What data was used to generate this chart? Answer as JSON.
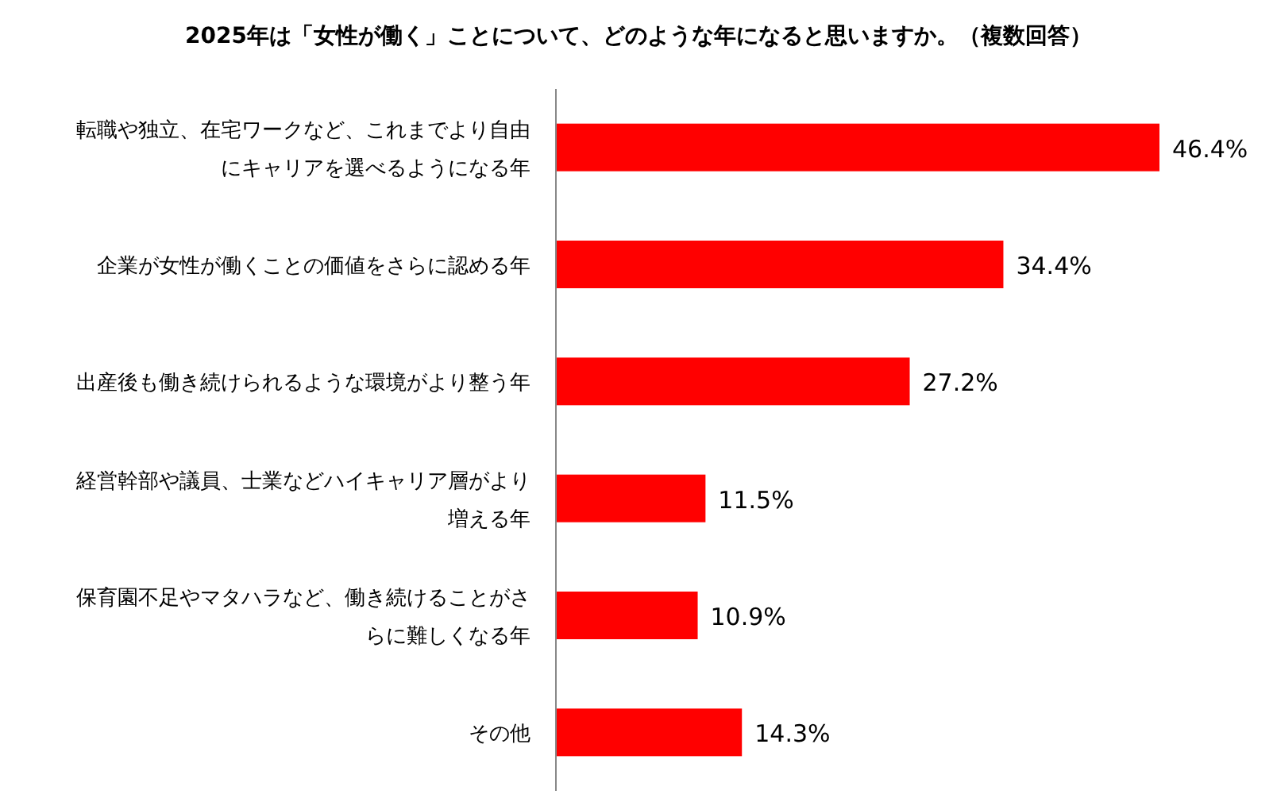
{
  "chart_data": {
    "type": "bar",
    "orientation": "horizontal",
    "title": "2025年は「女性が働く」ことについて、どのような年になると思いますか。（複数回答）",
    "categories": [
      "転職や独立、在宅ワークなど、これまでより自由にキャリアを選べるようになる年",
      "企業が女性が働くことの価値をさらに認める年",
      "出産後も働き続けられるような環境がより整う年",
      "経営幹部や議員、士業などハイキャリア層がより増える年",
      "保育園不足やマタハラなど、働き続けることがさらに難しくなる年",
      "その他"
    ],
    "values": [
      46.4,
      34.4,
      27.2,
      11.5,
      10.9,
      14.3
    ],
    "value_labels": [
      "46.4%",
      "34.4%",
      "27.2%",
      "11.5%",
      "10.9%",
      "14.3%"
    ],
    "color": "#ff0000"
  }
}
